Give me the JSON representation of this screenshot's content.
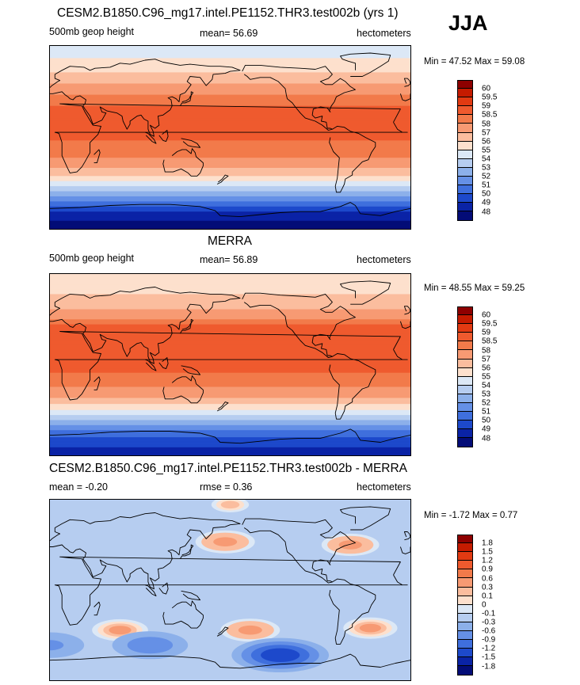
{
  "season": "JJA",
  "panels": [
    {
      "id": "model",
      "title": "CESM2.B1850.C96_mg17.intel.PE1152.THR3.test002b (yrs 1)",
      "left": "500mb geop height",
      "center": "mean=  56.69",
      "right": "hectometers",
      "minmax": "Min =  47.52 Max =  59.08"
    },
    {
      "id": "obs",
      "title": "MERRA",
      "left": "500mb geop height",
      "center": "mean=  56.89",
      "right": "hectometers",
      "minmax": "Min =  48.55 Max =  59.25"
    },
    {
      "id": "diff",
      "title": "CESM2.B1850.C96_mg17.intel.PE1152.THR3.test002b - MERRA",
      "left": "mean =  -0.20",
      "center": "rmse =   0.36",
      "right": "hectometers",
      "minmax": "Min =  -1.72 Max =   0.77"
    }
  ],
  "chart_data": [
    {
      "type": "heatmap",
      "name": "model-500mb-geopotential-height",
      "title": "CESM2.B1850.C96_mg17.intel.PE1152.THR3.test002b (yrs 1)",
      "variable": "500mb geop height",
      "units": "hectometers",
      "mean": 56.69,
      "min": 47.52,
      "max": 59.08,
      "colorbar_labels": [
        "60",
        "59.5",
        "59",
        "58.5",
        "58",
        "57",
        "56",
        "55",
        "54",
        "53",
        "52",
        "51",
        "50",
        "49",
        "48"
      ],
      "colorbar_colors": [
        "#8e0000",
        "#c51b00",
        "#e23a12",
        "#ef5a2e",
        "#f27a4a",
        "#f79a73",
        "#fbbd9e",
        "#fde0cd",
        "#dce8f6",
        "#b6cdf0",
        "#8cb0ea",
        "#6590e6",
        "#3f6fdd",
        "#1d49cb",
        "#0a23a6",
        "#030c77"
      ],
      "bands_north_to_south": [
        {
          "lat": 85,
          "value": 54.5
        },
        {
          "lat": 70,
          "value": 55.5
        },
        {
          "lat": 55,
          "value": 56.8
        },
        {
          "lat": 40,
          "value": 58.2
        },
        {
          "lat": 20,
          "value": 58.9
        },
        {
          "lat": 0,
          "value": 58.6
        },
        {
          "lat": -20,
          "value": 58.0
        },
        {
          "lat": -35,
          "value": 56.5
        },
        {
          "lat": -45,
          "value": 54.5
        },
        {
          "lat": -55,
          "value": 52.5
        },
        {
          "lat": -65,
          "value": 50.5
        },
        {
          "lat": -75,
          "value": 48.5
        },
        {
          "lat": -85,
          "value": 47.8
        }
      ]
    },
    {
      "type": "heatmap",
      "name": "merra-500mb-geopotential-height",
      "title": "MERRA",
      "variable": "500mb geop height",
      "units": "hectometers",
      "mean": 56.89,
      "min": 48.55,
      "max": 59.25,
      "colorbar_labels": [
        "60",
        "59.5",
        "59",
        "58.5",
        "58",
        "57",
        "56",
        "55",
        "54",
        "53",
        "52",
        "51",
        "50",
        "49",
        "48"
      ],
      "colorbar_colors": [
        "#8e0000",
        "#c51b00",
        "#e23a12",
        "#ef5a2e",
        "#f27a4a",
        "#f79a73",
        "#fbbd9e",
        "#fde0cd",
        "#dce8f6",
        "#b6cdf0",
        "#8cb0ea",
        "#6590e6",
        "#3f6fdd",
        "#1d49cb",
        "#0a23a6",
        "#030c77"
      ],
      "bands_north_to_south": [
        {
          "lat": 85,
          "value": 55.0
        },
        {
          "lat": 70,
          "value": 56.0
        },
        {
          "lat": 55,
          "value": 57.0
        },
        {
          "lat": 40,
          "value": 58.5
        },
        {
          "lat": 20,
          "value": 59.0
        },
        {
          "lat": 0,
          "value": 58.7
        },
        {
          "lat": -20,
          "value": 58.2
        },
        {
          "lat": -35,
          "value": 56.8
        },
        {
          "lat": -45,
          "value": 55.0
        },
        {
          "lat": -55,
          "value": 53.0
        },
        {
          "lat": -65,
          "value": 51.0
        },
        {
          "lat": -75,
          "value": 49.5
        },
        {
          "lat": -85,
          "value": 48.8
        }
      ]
    },
    {
      "type": "heatmap",
      "name": "difference-model-minus-merra",
      "title": "CESM2.B1850.C96_mg17.intel.PE1152.THR3.test002b - MERRA",
      "units": "hectometers",
      "mean": -0.2,
      "rmse": 0.36,
      "min": -1.72,
      "max": 0.77,
      "colorbar_labels": [
        "1.8",
        "1.5",
        "1.2",
        "0.9",
        "0.6",
        "0.3",
        "0.1",
        "0",
        "-0.1",
        "-0.3",
        "-0.6",
        "-0.9",
        "-1.2",
        "-1.5",
        "-1.8"
      ],
      "colorbar_colors": [
        "#8e0000",
        "#c51b00",
        "#e23a12",
        "#ef5a2e",
        "#f27a4a",
        "#f79a73",
        "#fbbd9e",
        "#fde0cd",
        "#dce8f6",
        "#b6cdf0",
        "#8cb0ea",
        "#6590e6",
        "#3f6fdd",
        "#1d49cb",
        "#0a23a6",
        "#030c77"
      ],
      "background_value": -0.2,
      "anomalies": [
        {
          "region": "North Pacific",
          "lon": 175,
          "lat": 48,
          "value": 0.45
        },
        {
          "region": "North Atlantic",
          "lon": 300,
          "lat": 45,
          "value": 0.4
        },
        {
          "region": "South Indian Ocean",
          "lon": 70,
          "lat": -40,
          "value": 0.35
        },
        {
          "region": "South Pacific",
          "lon": 200,
          "lat": -40,
          "value": 0.45
        },
        {
          "region": "South Atlantic",
          "lon": 320,
          "lat": -38,
          "value": 0.3
        },
        {
          "region": "Antarctic coast (Pacific sector)",
          "lon": 230,
          "lat": -65,
          "value": -1.5
        },
        {
          "region": "Southern Ocean (Indian sector)",
          "lon": 100,
          "lat": -55,
          "value": -0.9
        },
        {
          "region": "Southern Ocean (Atlantic sector)",
          "lon": 0,
          "lat": -55,
          "value": -0.7
        },
        {
          "region": "Arctic",
          "lon": 180,
          "lat": 85,
          "value": 0.1
        }
      ]
    }
  ]
}
